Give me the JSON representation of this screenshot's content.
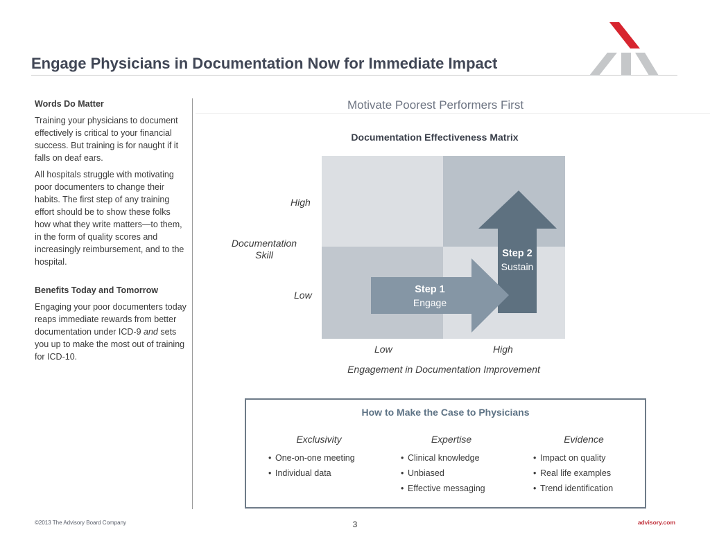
{
  "header": {
    "title": "Engage Physicians in Documentation Now for Immediate Impact"
  },
  "left_column": {
    "section1_heading": "Words Do Matter",
    "section1_p1": "Training your physicians to document effectively is critical to  your financial success. But training is for naught if it falls on deaf ears.",
    "section1_p2": "All hospitals struggle with motivating poor documenters to change their habits.  The first step of any  training effort should be to show these folks how what they write matters—to them, in the form of quality scores and increasingly reimbursement, and to the hospital.",
    "section2_heading": "Benefits Today and Tomorrow",
    "section2_p_before": "Engaging your poor documenters today reaps immediate rewards from better documentation under ICD-9 ",
    "section2_p_italic": "and",
    "section2_p_after": " sets you up to make the most out of training for ICD-10."
  },
  "main": {
    "subtitle": "Motivate Poorest Performers First",
    "matrix_title": "Documentation Effectiveness Matrix"
  },
  "matrix": {
    "y_axis_label": "Documentation Skill",
    "y_high": "High",
    "y_low": "Low",
    "x_axis_label": "Engagement in Documentation Improvement",
    "x_low": "Low",
    "x_high": "High",
    "step1_num": "Step 1",
    "step1_label": "Engage",
    "step2_num": "Step 2",
    "step2_label": "Sustain",
    "colors": {
      "quadrant_light": "#dcdfe3",
      "quadrant_mid": "#c1c7ce",
      "quadrant_dark": "#b9c1c9",
      "step1_arrow": "#8596a5",
      "step2_arrow": "#5e7180"
    }
  },
  "case_box": {
    "title": "How to Make the Case to Physicians",
    "columns": [
      {
        "heading": "Exclusivity",
        "items": [
          "One-on-one meeting",
          "Individual data"
        ]
      },
      {
        "heading": "Expertise",
        "items": [
          "Clinical knowledge",
          "Unbiased",
          "Effective messaging"
        ]
      },
      {
        "heading": "Evidence",
        "items": [
          "Impact on quality",
          "Real life examples",
          "Trend identification"
        ]
      }
    ]
  },
  "footer": {
    "copyright": "©2013 The Advisory Board Company",
    "page_number": "3",
    "website": "advisory.com"
  },
  "brand": {
    "logo_icon": "advisory-board-logo-icon",
    "accent_red": "#d7252f",
    "logo_gray": "#c5c7c9"
  }
}
